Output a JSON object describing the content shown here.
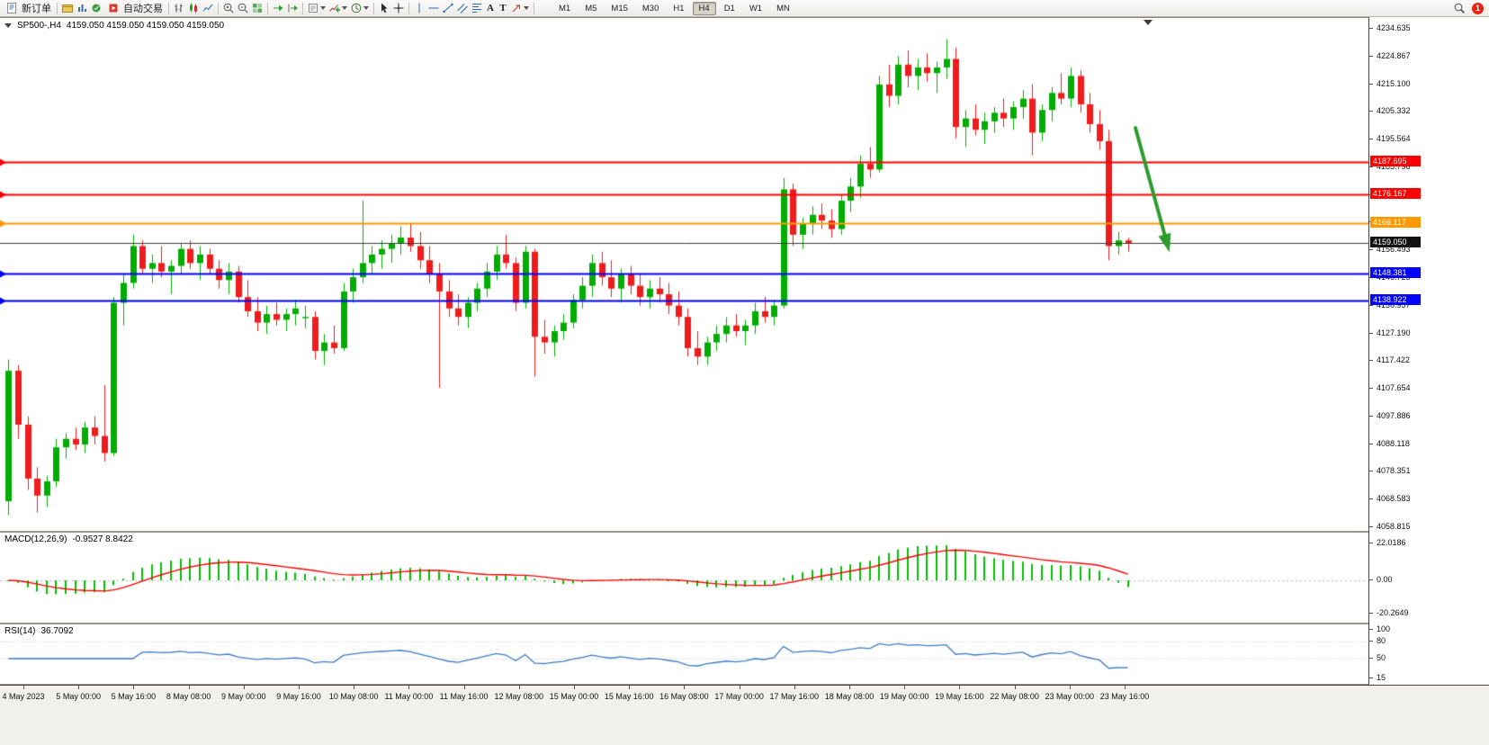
{
  "toolbar": {
    "new_order_label": "新订单",
    "auto_trading_label": "自动交易",
    "timeframes": [
      "M1",
      "M5",
      "M15",
      "M30",
      "H1",
      "H4",
      "D1",
      "W1",
      "MN"
    ],
    "active_timeframe": "H4",
    "notification_count": "1"
  },
  "icons": {
    "text_a": "A",
    "text_t": "T"
  },
  "chart_data": {
    "type": "candlestick",
    "symbol": "SP500-",
    "timeframe": "H4",
    "header": {
      "symbol_period": "SP500-,H4",
      "ohlc": "4159.050 4159.050 4159.050 4159.050"
    },
    "current_price": 4159.05,
    "ylim": [
      4058.815,
      4234.635
    ],
    "price_axis_labels": [
      "4234.635",
      "4224.867",
      "4215.100",
      "4205.332",
      "4195.564",
      "4185.796",
      "4176.028",
      "4166.261",
      "4156.493",
      "4146.725",
      "4136.957",
      "4127.190",
      "4117.422",
      "4107.654",
      "4097.886",
      "4088.118",
      "4078.351",
      "4068.583",
      "4058.815"
    ],
    "time_axis_labels": [
      "4 May 2023",
      "5 May 00:00",
      "5 May 16:00",
      "8 May 08:00",
      "9 May 00:00",
      "9 May 16:00",
      "10 May 08:00",
      "11 May 00:00",
      "11 May 16:00",
      "12 May 08:00",
      "15 May 00:00",
      "15 May 16:00",
      "16 May 08:00",
      "17 May 00:00",
      "17 May 16:00",
      "18 May 08:00",
      "19 May 00:00",
      "19 May 16:00",
      "22 May 08:00",
      "23 May 00:00",
      "23 May 16:00"
    ],
    "horizontal_lines": [
      {
        "label": "4187.695",
        "price": 4187.695,
        "color": "#ff0000",
        "label_bg": "#ff0000",
        "width": 2,
        "type": "resistance-line"
      },
      {
        "label": "4176.167",
        "price": 4176.167,
        "color": "#ff0000",
        "label_bg": "#ff0000",
        "width": 2,
        "type": "resistance-line"
      },
      {
        "label": "4166.117",
        "price": 4166.117,
        "color": "#ff9900",
        "label_bg": "#ff9900",
        "width": 2,
        "type": "pivot-line"
      },
      {
        "label": "4159.050",
        "price": 4159.05,
        "color": "#3a3a3a",
        "label_bg": "#111111",
        "width": 1,
        "type": "current-price"
      },
      {
        "label": "4148.381",
        "price": 4148.381,
        "color": "#0000ff",
        "label_bg": "#0000ff",
        "width": 2,
        "type": "support-line"
      },
      {
        "label": "4138.922",
        "price": 4138.922,
        "color": "#0000ff",
        "label_bg": "#0000ff",
        "width": 2,
        "type": "support-line"
      }
    ],
    "candles_ohlc": [
      [
        4068,
        4118,
        4063,
        4114
      ],
      [
        4114,
        4116,
        4090,
        4095
      ],
      [
        4095,
        4098,
        4072,
        4076
      ],
      [
        4076,
        4080,
        4064,
        4070
      ],
      [
        4070,
        4077,
        4066,
        4075
      ],
      [
        4075,
        4090,
        4073,
        4087
      ],
      [
        4087,
        4092,
        4083,
        4090
      ],
      [
        4090,
        4094,
        4086,
        4088
      ],
      [
        4088,
        4096,
        4085,
        4094
      ],
      [
        4094,
        4098,
        4088,
        4091
      ],
      [
        4091,
        4109,
        4082,
        4085
      ],
      [
        4085,
        4140,
        4084,
        4138
      ],
      [
        4138,
        4148,
        4130,
        4145
      ],
      [
        4145,
        4162,
        4143,
        4158
      ],
      [
        4158,
        4160,
        4148,
        4150
      ],
      [
        4150,
        4155,
        4145,
        4152
      ],
      [
        4152,
        4158,
        4147,
        4149
      ],
      [
        4149,
        4153,
        4141,
        4151
      ],
      [
        4151,
        4159,
        4148,
        4157
      ],
      [
        4157,
        4160,
        4150,
        4152
      ],
      [
        4152,
        4158,
        4146,
        4155
      ],
      [
        4155,
        4157,
        4148,
        4150
      ],
      [
        4150,
        4153,
        4143,
        4146
      ],
      [
        4146,
        4152,
        4141,
        4149
      ],
      [
        4149,
        4151,
        4138,
        4140
      ],
      [
        4140,
        4146,
        4133,
        4135
      ],
      [
        4135,
        4140,
        4128,
        4131
      ],
      [
        4131,
        4137,
        4127,
        4134
      ],
      [
        4134,
        4138,
        4130,
        4132
      ],
      [
        4132,
        4136,
        4128,
        4134
      ],
      [
        4134,
        4139,
        4130,
        4136
      ],
      [
        4133,
        4137,
        4129,
        4133
      ],
      [
        4133,
        4135,
        4118,
        4121
      ],
      [
        4121,
        4127,
        4116,
        4124
      ],
      [
        4124,
        4130,
        4120,
        4122
      ],
      [
        4122,
        4145,
        4121,
        4142
      ],
      [
        4142,
        4150,
        4138,
        4147
      ],
      [
        4147,
        4174,
        4145,
        4152
      ],
      [
        4152,
        4158,
        4148,
        4155
      ],
      [
        4155,
        4160,
        4150,
        4157
      ],
      [
        4157,
        4162,
        4152,
        4159
      ],
      [
        4159,
        4165,
        4155,
        4161
      ],
      [
        4161,
        4166,
        4156,
        4158
      ],
      [
        4158,
        4163,
        4150,
        4153
      ],
      [
        4153,
        4158,
        4145,
        4148
      ],
      [
        4148,
        4152,
        4108,
        4142
      ],
      [
        4142,
        4146,
        4133,
        4136
      ],
      [
        4136,
        4141,
        4130,
        4133
      ],
      [
        4133,
        4140,
        4129,
        4138
      ],
      [
        4138,
        4145,
        4135,
        4143
      ],
      [
        4143,
        4152,
        4140,
        4149
      ],
      [
        4149,
        4158,
        4146,
        4155
      ],
      [
        4155,
        4162,
        4150,
        4152
      ],
      [
        4152,
        4154,
        4135,
        4138
      ],
      [
        4138,
        4158,
        4136,
        4156
      ],
      [
        4156,
        4157,
        4112,
        4126
      ],
      [
        4126,
        4132,
        4120,
        4124
      ],
      [
        4124,
        4130,
        4119,
        4128
      ],
      [
        4128,
        4134,
        4125,
        4131
      ],
      [
        4131,
        4141,
        4129,
        4139
      ],
      [
        4139,
        4147,
        4136,
        4144
      ],
      [
        4144,
        4155,
        4140,
        4152
      ],
      [
        4152,
        4156,
        4144,
        4147
      ],
      [
        4147,
        4153,
        4140,
        4143
      ],
      [
        4143,
        4150,
        4138,
        4148
      ],
      [
        4148,
        4151,
        4141,
        4144
      ],
      [
        4144,
        4148,
        4137,
        4140
      ],
      [
        4140,
        4146,
        4136,
        4143
      ],
      [
        4143,
        4147,
        4138,
        4141
      ],
      [
        4141,
        4145,
        4134,
        4137
      ],
      [
        4137,
        4142,
        4130,
        4133
      ],
      [
        4133,
        4136,
        4119,
        4122
      ],
      [
        4122,
        4128,
        4116,
        4119
      ],
      [
        4119,
        4126,
        4116,
        4124
      ],
      [
        4124,
        4130,
        4121,
        4127
      ],
      [
        4127,
        4133,
        4124,
        4130
      ],
      [
        4130,
        4134,
        4126,
        4128
      ],
      [
        4128,
        4132,
        4123,
        4130
      ],
      [
        4130,
        4138,
        4127,
        4135
      ],
      [
        4135,
        4140,
        4131,
        4133
      ],
      [
        4133,
        4139,
        4130,
        4137
      ],
      [
        4137,
        4182,
        4136,
        4178
      ],
      [
        4178,
        4180,
        4158,
        4162
      ],
      [
        4162,
        4168,
        4157,
        4166
      ],
      [
        4166,
        4172,
        4162,
        4169
      ],
      [
        4169,
        4173,
        4164,
        4167
      ],
      [
        4167,
        4171,
        4161,
        4164
      ],
      [
        4164,
        4176,
        4162,
        4174
      ],
      [
        4174,
        4182,
        4170,
        4179
      ],
      [
        4179,
        4190,
        4175,
        4187
      ],
      [
        4187,
        4193,
        4182,
        4185
      ],
      [
        4185,
        4218,
        4184,
        4215
      ],
      [
        4215,
        4222,
        4207,
        4211
      ],
      [
        4211,
        4225,
        4208,
        4222
      ],
      [
        4222,
        4227,
        4214,
        4218
      ],
      [
        4218,
        4224,
        4213,
        4221
      ],
      [
        4221,
        4226,
        4216,
        4219
      ],
      [
        4219,
        4223,
        4212,
        4221
      ],
      [
        4221,
        4231,
        4217,
        4224
      ],
      [
        4224,
        4228,
        4196,
        4200
      ],
      [
        4200,
        4206,
        4193,
        4203
      ],
      [
        4203,
        4208,
        4197,
        4199
      ],
      [
        4199,
        4205,
        4194,
        4202
      ],
      [
        4202,
        4207,
        4198,
        4205
      ],
      [
        4205,
        4210,
        4200,
        4203
      ],
      [
        4203,
        4209,
        4199,
        4207
      ],
      [
        4207,
        4213,
        4203,
        4210
      ],
      [
        4210,
        4215,
        4190,
        4198
      ],
      [
        4198,
        4208,
        4195,
        4206
      ],
      [
        4206,
        4214,
        4202,
        4212
      ],
      [
        4212,
        4219,
        4208,
        4210
      ],
      [
        4210,
        4221,
        4207,
        4218
      ],
      [
        4218,
        4220,
        4205,
        4208
      ],
      [
        4208,
        4212,
        4198,
        4201
      ],
      [
        4201,
        4206,
        4192,
        4195
      ],
      [
        4195,
        4199,
        4153,
        4158
      ],
      [
        4158,
        4163,
        4155,
        4160
      ],
      [
        4160,
        4161,
        4156,
        4159
      ]
    ],
    "indicators": [
      {
        "name": "MACD",
        "params": "12,26,9",
        "display_name": "MACD(12,26,9)",
        "display_values": "-0.9527 8.8422",
        "axis_labels": [
          "22.0186",
          "0.00",
          "-20.2649"
        ]
      },
      {
        "name": "RSI",
        "params": "14",
        "display_name": "RSI(14)",
        "display_values": "36.7092",
        "axis_labels": [
          "100",
          "80",
          "50",
          "15"
        ]
      }
    ],
    "annotation_arrow": {
      "from": {
        "x": 1262,
        "y": 122
      },
      "to": {
        "x": 1297,
        "y": 250
      },
      "color": "#2e9b2e",
      "width": 4
    },
    "colors": {
      "bull": "#00ad00",
      "bear": "#ee1c1c",
      "macd_histogram": "#00c000",
      "macd_signal": "#ff0000",
      "rsi_line": "#3f7cc4",
      "background": "#ffffff",
      "axis_text": "#000000"
    }
  }
}
